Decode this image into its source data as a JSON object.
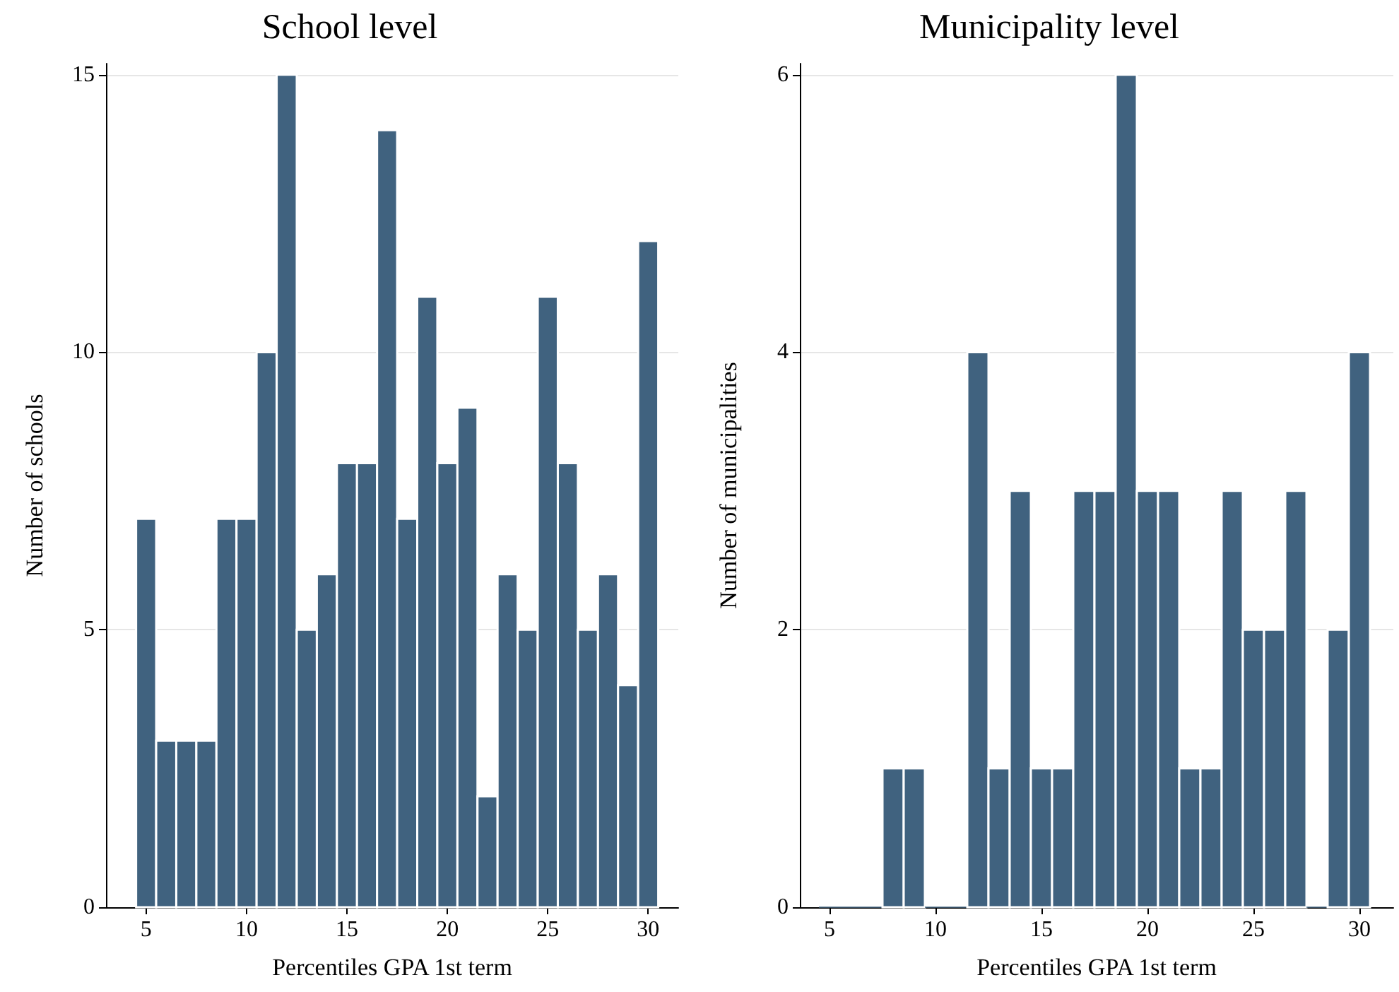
{
  "chart_data": [
    {
      "type": "histogram",
      "title": "School level",
      "xlabel": "Percentiles GPA 1st term",
      "ylabel": "Number of schools",
      "bins": [
        4.5,
        5.5,
        6.5,
        7.5,
        8.5,
        9.5,
        10.5,
        11.5,
        12.5,
        13.5,
        14.5,
        15.5,
        16.5,
        17.5,
        18.5,
        19.5,
        20.5,
        21.5,
        22.5,
        23.5,
        24.5,
        25.5,
        26.5,
        27.5,
        28.5,
        29.5,
        30.5
      ],
      "values": [
        7,
        3,
        3,
        3,
        7,
        7,
        10,
        15,
        5,
        6,
        8,
        8,
        14,
        7,
        11,
        8,
        9,
        2,
        6,
        5,
        11,
        8,
        5,
        6,
        4,
        12
      ],
      "color": "#40627f",
      "xlim": [
        3,
        31.5
      ],
      "ylim": [
        0,
        15.2
      ],
      "xticks": [
        5,
        10,
        15,
        20,
        25,
        30
      ],
      "yticks": [
        0,
        5,
        10,
        15
      ],
      "grid": "y"
    },
    {
      "type": "histogram",
      "title": "Municipality level",
      "xlabel": "Percentiles GPA 1st term",
      "ylabel": "Number of municipalities",
      "bins": [
        4.5,
        5.5,
        6.5,
        7.5,
        8.5,
        9.5,
        10.5,
        11.5,
        12.5,
        13.5,
        14.5,
        15.5,
        16.5,
        17.5,
        18.5,
        19.5,
        20.5,
        21.5,
        22.5,
        23.5,
        24.5,
        25.5,
        26.5,
        27.5,
        28.5,
        29.5,
        30.5
      ],
      "values": [
        0,
        0,
        0,
        1,
        1,
        0,
        0,
        4,
        1,
        3,
        1,
        1,
        3,
        3,
        6,
        3,
        3,
        1,
        1,
        3,
        2,
        2,
        3,
        0,
        2,
        4
      ],
      "color": "#40627f",
      "xlim": [
        3.6,
        31.6
      ],
      "ylim": [
        0,
        6.08
      ],
      "xticks": [
        5,
        10,
        15,
        20,
        25,
        30
      ],
      "yticks": [
        0,
        2,
        4,
        6
      ],
      "grid": "y"
    }
  ]
}
